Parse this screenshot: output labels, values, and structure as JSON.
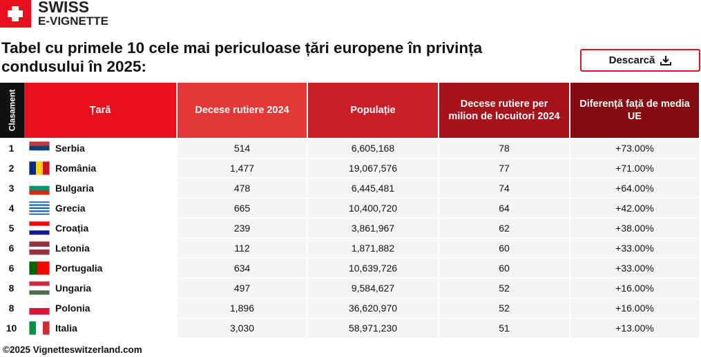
{
  "logo": {
    "line1": "SWISS",
    "line2": "E-VIGNETTE"
  },
  "title": "Tabel cu primele 10 cele mai periculoase țări europene în privința condusului în 2025:",
  "button": "Descarcă",
  "table": {
    "headers": [
      "Clasament",
      "Țară",
      "Decese rutiere 2024",
      "Populație",
      "Decese rutiere per milion de locuitori 2024",
      "Diferență față de media UE"
    ],
    "rows": [
      [
        "1",
        "Serbia",
        "514",
        "6,605,168",
        "78",
        "+73.00%"
      ],
      [
        "2",
        "România",
        "1,477",
        "19,067,576",
        "77",
        "+71.00%"
      ],
      [
        "3",
        "Bulgaria",
        "478",
        "6,445,481",
        "74",
        "+64.00%"
      ],
      [
        "4",
        "Grecia",
        "665",
        "10,400,720",
        "64",
        "+42.00%"
      ],
      [
        "5",
        "Croația",
        "239",
        "3,861,967",
        "62",
        "+38.00%"
      ],
      [
        "6",
        "Letonia",
        "112",
        "1,871,882",
        "60",
        "+33.00%"
      ],
      [
        "6",
        "Portugalia",
        "634",
        "10,639,726",
        "60",
        "+33.00%"
      ],
      [
        "8",
        "Ungaria",
        "497",
        "9,584,627",
        "52",
        "+16.00%"
      ],
      [
        "8",
        "Polonia",
        "1,896",
        "36,620,970",
        "52",
        "+16.00%"
      ],
      [
        "10",
        "Italia",
        "3,030",
        "58,971,230",
        "51",
        "+13.00%"
      ]
    ]
  },
  "footer": "©2025 Vignetteswitzerland.com"
}
